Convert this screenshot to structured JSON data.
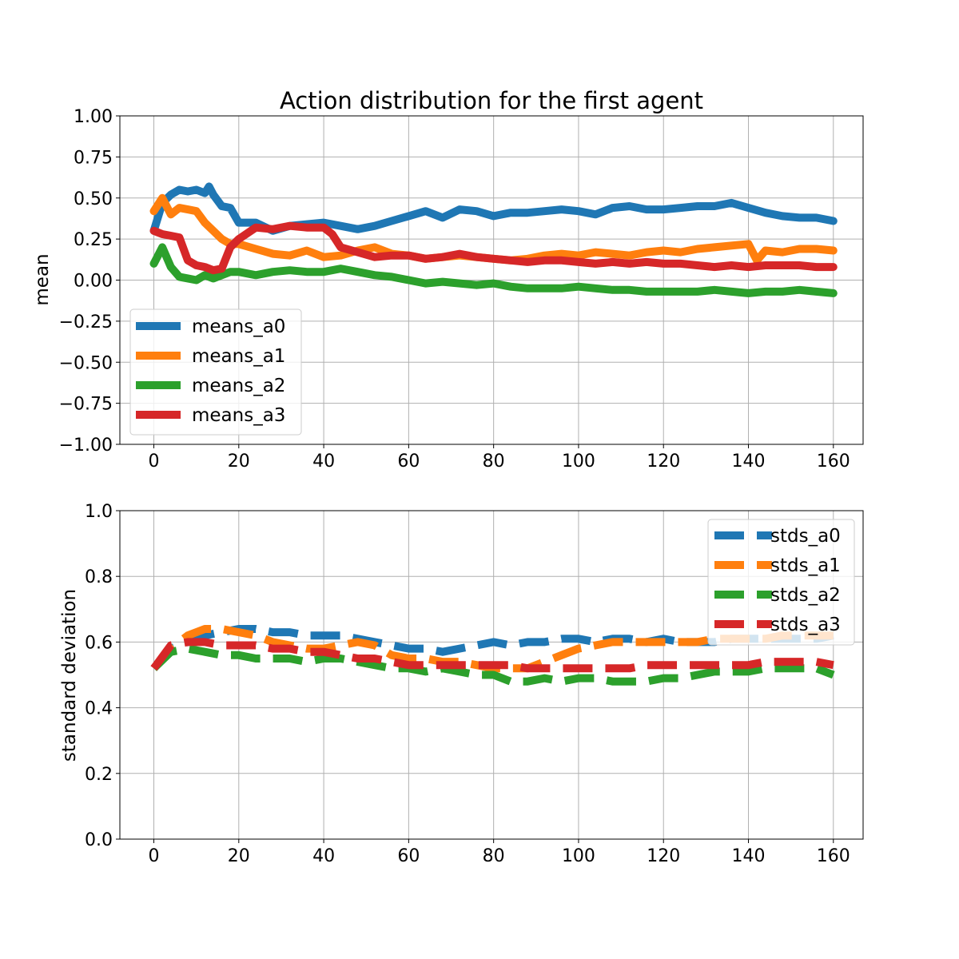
{
  "chart_data": [
    {
      "type": "line",
      "title": "Action distribution for the first agent",
      "xlabel": "",
      "ylabel": "mean",
      "xlim": [
        -8,
        167
      ],
      "ylim": [
        -1.0,
        1.0
      ],
      "xticks": [
        0,
        20,
        40,
        60,
        80,
        100,
        120,
        140,
        160
      ],
      "xtick_labels": [
        "0",
        "20",
        "40",
        "60",
        "80",
        "100",
        "120",
        "140",
        "160"
      ],
      "yticks": [
        -1.0,
        -0.75,
        -0.5,
        -0.25,
        0.0,
        0.25,
        0.5,
        0.75,
        1.0
      ],
      "ytick_labels": [
        "−1.00",
        "−0.75",
        "−0.50",
        "−0.25",
        "0.00",
        "0.25",
        "0.50",
        "0.75",
        "1.00"
      ],
      "grid": true,
      "legend_position": "center-left",
      "line_style": "solid",
      "series": [
        {
          "name": "means_a0",
          "color": "#1f77b4",
          "x": [
            0,
            2,
            4,
            6,
            8,
            10,
            12,
            13,
            14,
            16,
            18,
            20,
            24,
            28,
            32,
            36,
            40,
            44,
            48,
            52,
            56,
            60,
            64,
            68,
            72,
            76,
            80,
            84,
            88,
            92,
            96,
            100,
            104,
            108,
            112,
            116,
            120,
            124,
            128,
            132,
            136,
            140,
            144,
            148,
            152,
            156,
            160
          ],
          "y": [
            0.3,
            0.47,
            0.52,
            0.55,
            0.54,
            0.55,
            0.53,
            0.57,
            0.52,
            0.45,
            0.44,
            0.35,
            0.35,
            0.3,
            0.33,
            0.34,
            0.35,
            0.33,
            0.31,
            0.33,
            0.36,
            0.39,
            0.42,
            0.38,
            0.43,
            0.42,
            0.39,
            0.41,
            0.41,
            0.42,
            0.43,
            0.42,
            0.4,
            0.44,
            0.45,
            0.43,
            0.43,
            0.44,
            0.45,
            0.45,
            0.47,
            0.44,
            0.41,
            0.39,
            0.38,
            0.38,
            0.36
          ]
        },
        {
          "name": "means_a1",
          "color": "#ff7f0e",
          "x": [
            0,
            2,
            4,
            6,
            8,
            10,
            12,
            14,
            16,
            18,
            20,
            24,
            28,
            32,
            36,
            40,
            44,
            48,
            52,
            56,
            60,
            64,
            68,
            72,
            76,
            80,
            84,
            88,
            92,
            96,
            100,
            104,
            108,
            112,
            116,
            120,
            124,
            128,
            132,
            136,
            140,
            142,
            144,
            148,
            152,
            156,
            160
          ],
          "y": [
            0.42,
            0.5,
            0.4,
            0.44,
            0.43,
            0.42,
            0.35,
            0.3,
            0.25,
            0.22,
            0.22,
            0.19,
            0.16,
            0.15,
            0.18,
            0.14,
            0.15,
            0.18,
            0.2,
            0.16,
            0.15,
            0.13,
            0.14,
            0.15,
            0.14,
            0.13,
            0.12,
            0.13,
            0.15,
            0.16,
            0.15,
            0.17,
            0.16,
            0.15,
            0.17,
            0.18,
            0.17,
            0.19,
            0.2,
            0.21,
            0.22,
            0.12,
            0.18,
            0.17,
            0.19,
            0.19,
            0.18
          ]
        },
        {
          "name": "means_a2",
          "color": "#2ca02c",
          "x": [
            0,
            2,
            4,
            6,
            8,
            10,
            12,
            14,
            16,
            18,
            20,
            24,
            28,
            32,
            36,
            40,
            44,
            48,
            52,
            56,
            60,
            64,
            68,
            72,
            76,
            80,
            84,
            88,
            92,
            96,
            100,
            104,
            108,
            112,
            116,
            120,
            124,
            128,
            132,
            136,
            140,
            144,
            148,
            152,
            156,
            160
          ],
          "y": [
            0.1,
            0.2,
            0.08,
            0.02,
            0.01,
            0.0,
            0.03,
            0.01,
            0.03,
            0.05,
            0.05,
            0.03,
            0.05,
            0.06,
            0.05,
            0.05,
            0.07,
            0.05,
            0.03,
            0.02,
            0.0,
            -0.02,
            -0.01,
            -0.02,
            -0.03,
            -0.02,
            -0.04,
            -0.05,
            -0.05,
            -0.05,
            -0.04,
            -0.05,
            -0.06,
            -0.06,
            -0.07,
            -0.07,
            -0.07,
            -0.07,
            -0.06,
            -0.07,
            -0.08,
            -0.07,
            -0.07,
            -0.06,
            -0.07,
            -0.08
          ]
        },
        {
          "name": "means_a3",
          "color": "#d62728",
          "x": [
            0,
            2,
            4,
            6,
            8,
            10,
            12,
            14,
            16,
            18,
            20,
            24,
            28,
            32,
            36,
            40,
            42,
            44,
            48,
            52,
            56,
            60,
            64,
            68,
            72,
            76,
            80,
            84,
            88,
            92,
            96,
            100,
            104,
            108,
            112,
            116,
            120,
            124,
            128,
            132,
            136,
            140,
            144,
            148,
            152,
            156,
            160
          ],
          "y": [
            0.3,
            0.28,
            0.27,
            0.26,
            0.12,
            0.09,
            0.08,
            0.06,
            0.07,
            0.2,
            0.25,
            0.32,
            0.31,
            0.33,
            0.32,
            0.32,
            0.28,
            0.2,
            0.17,
            0.14,
            0.15,
            0.15,
            0.13,
            0.14,
            0.16,
            0.14,
            0.13,
            0.12,
            0.11,
            0.12,
            0.12,
            0.11,
            0.1,
            0.11,
            0.1,
            0.11,
            0.1,
            0.1,
            0.09,
            0.08,
            0.09,
            0.08,
            0.09,
            0.09,
            0.09,
            0.08,
            0.08
          ]
        }
      ]
    },
    {
      "type": "line",
      "title": "",
      "xlabel": "",
      "ylabel": "standard deviation",
      "xlim": [
        -8,
        167
      ],
      "ylim": [
        0.0,
        1.0
      ],
      "xticks": [
        0,
        20,
        40,
        60,
        80,
        100,
        120,
        140,
        160
      ],
      "xtick_labels": [
        "0",
        "20",
        "40",
        "60",
        "80",
        "100",
        "120",
        "140",
        "160"
      ],
      "yticks": [
        0.0,
        0.2,
        0.4,
        0.6,
        0.8,
        1.0
      ],
      "ytick_labels": [
        "0.0",
        "0.2",
        "0.4",
        "0.6",
        "0.8",
        "1.0"
      ],
      "grid": true,
      "legend_position": "top-right",
      "line_style": "dashed",
      "series": [
        {
          "name": "stds_a0",
          "color": "#1f77b4",
          "x": [
            0,
            4,
            8,
            12,
            16,
            20,
            24,
            28,
            32,
            36,
            40,
            44,
            48,
            52,
            56,
            60,
            64,
            68,
            72,
            76,
            80,
            84,
            88,
            92,
            96,
            100,
            104,
            108,
            112,
            116,
            120,
            124,
            128,
            132,
            136,
            140,
            144,
            148,
            152,
            156,
            160
          ],
          "y": [
            0.52,
            0.58,
            0.6,
            0.62,
            0.63,
            0.64,
            0.64,
            0.63,
            0.63,
            0.62,
            0.62,
            0.62,
            0.61,
            0.6,
            0.59,
            0.58,
            0.58,
            0.57,
            0.58,
            0.59,
            0.6,
            0.59,
            0.6,
            0.6,
            0.61,
            0.61,
            0.6,
            0.61,
            0.61,
            0.6,
            0.61,
            0.6,
            0.6,
            0.6,
            0.61,
            0.61,
            0.61,
            0.61,
            0.61,
            0.61,
            0.62
          ]
        },
        {
          "name": "stds_a1",
          "color": "#ff7f0e",
          "x": [
            0,
            4,
            8,
            12,
            16,
            20,
            24,
            28,
            32,
            36,
            40,
            44,
            48,
            52,
            56,
            60,
            64,
            68,
            72,
            76,
            80,
            84,
            88,
            92,
            96,
            100,
            104,
            108,
            112,
            116,
            120,
            124,
            128,
            132,
            136,
            140,
            144,
            148,
            152,
            156,
            160
          ],
          "y": [
            0.52,
            0.58,
            0.62,
            0.64,
            0.64,
            0.63,
            0.62,
            0.6,
            0.59,
            0.58,
            0.58,
            0.59,
            0.6,
            0.59,
            0.56,
            0.55,
            0.55,
            0.54,
            0.54,
            0.53,
            0.52,
            0.52,
            0.52,
            0.54,
            0.56,
            0.58,
            0.59,
            0.6,
            0.6,
            0.6,
            0.6,
            0.6,
            0.6,
            0.61,
            0.61,
            0.61,
            0.61,
            0.62,
            0.62,
            0.62,
            0.62
          ]
        },
        {
          "name": "stds_a2",
          "color": "#2ca02c",
          "x": [
            0,
            4,
            8,
            12,
            16,
            20,
            24,
            28,
            32,
            36,
            40,
            44,
            48,
            52,
            56,
            60,
            64,
            68,
            72,
            76,
            80,
            84,
            88,
            92,
            96,
            100,
            104,
            108,
            112,
            116,
            120,
            124,
            128,
            132,
            136,
            140,
            144,
            148,
            152,
            156,
            160
          ],
          "y": [
            0.52,
            0.57,
            0.58,
            0.57,
            0.56,
            0.56,
            0.55,
            0.55,
            0.55,
            0.54,
            0.55,
            0.55,
            0.54,
            0.53,
            0.52,
            0.52,
            0.51,
            0.52,
            0.51,
            0.5,
            0.5,
            0.48,
            0.48,
            0.49,
            0.48,
            0.49,
            0.49,
            0.48,
            0.48,
            0.48,
            0.49,
            0.49,
            0.5,
            0.51,
            0.51,
            0.51,
            0.52,
            0.52,
            0.52,
            0.52,
            0.5
          ]
        },
        {
          "name": "stds_a3",
          "color": "#d62728",
          "x": [
            0,
            4,
            8,
            12,
            16,
            20,
            24,
            28,
            32,
            36,
            40,
            44,
            48,
            52,
            56,
            60,
            64,
            68,
            72,
            76,
            80,
            84,
            88,
            92,
            96,
            100,
            104,
            108,
            112,
            116,
            120,
            124,
            128,
            132,
            136,
            140,
            144,
            148,
            152,
            156,
            160
          ],
          "y": [
            0.52,
            0.59,
            0.6,
            0.6,
            0.59,
            0.59,
            0.59,
            0.58,
            0.58,
            0.57,
            0.57,
            0.56,
            0.55,
            0.55,
            0.54,
            0.53,
            0.53,
            0.53,
            0.53,
            0.53,
            0.53,
            0.53,
            0.52,
            0.52,
            0.52,
            0.52,
            0.52,
            0.52,
            0.52,
            0.53,
            0.53,
            0.53,
            0.53,
            0.53,
            0.53,
            0.53,
            0.54,
            0.54,
            0.54,
            0.54,
            0.53
          ]
        }
      ]
    }
  ]
}
